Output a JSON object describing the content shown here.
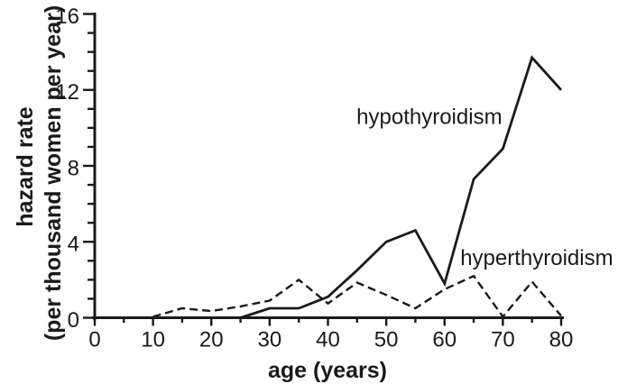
{
  "figure": {
    "background": "#ffffff",
    "ink": "#1a1a1a"
  },
  "chart_data": {
    "type": "line",
    "title": "",
    "xlabel": "age (years)",
    "ylabel": "hazard rate (per thousand women per year)",
    "ylabel_line1": "hazard rate",
    "ylabel_line2": "(per thousand women per year)",
    "xlim": [
      0,
      80
    ],
    "ylim": [
      0,
      16
    ],
    "x_major_ticks": [
      0,
      10,
      20,
      30,
      40,
      50,
      60,
      70,
      80
    ],
    "x_minor_tick_step": 5,
    "y_major_ticks": [
      0,
      4,
      8,
      12,
      16
    ],
    "y_minor_tick_step": 1,
    "grid": false,
    "legend_position": "inline-annotations",
    "series": [
      {
        "name": "hypothyroidism",
        "line_style": "solid",
        "x": [
          25,
          30,
          35,
          40,
          45,
          50,
          55,
          60,
          65,
          70,
          75,
          80
        ],
        "y": [
          0,
          0.5,
          0.5,
          1.1,
          2.5,
          4.0,
          4.6,
          1.8,
          7.3,
          8.9,
          13.7,
          12.0
        ],
        "annotation": {
          "text": "hypothyroidism",
          "x": 44.9,
          "y": 10.2
        }
      },
      {
        "name": "hyperthyroidism",
        "line_style": "dashed",
        "x": [
          10,
          15,
          20,
          25,
          30,
          35,
          40,
          45,
          50,
          55,
          60,
          65,
          70,
          75,
          80
        ],
        "y": [
          0.05,
          0.5,
          0.35,
          0.6,
          0.9,
          2.0,
          0.75,
          1.85,
          1.2,
          0.5,
          1.5,
          2.2,
          0.05,
          1.9,
          0.1
        ],
        "annotation": {
          "text": "hyperthyroidism",
          "x": 62.7,
          "y": 2.78
        }
      }
    ]
  }
}
